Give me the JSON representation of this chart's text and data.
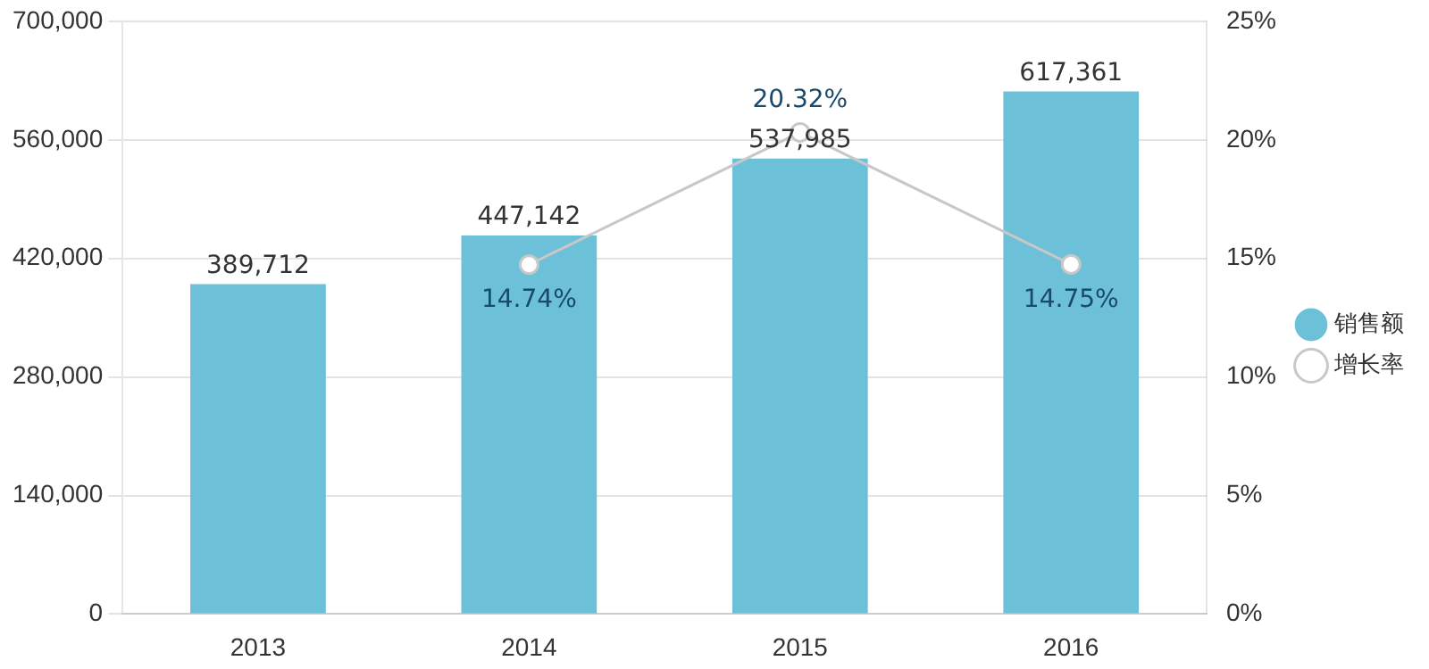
{
  "chart_data": {
    "type": "bar",
    "categories": [
      "2013",
      "2014",
      "2015",
      "2016"
    ],
    "series": [
      {
        "name": "销售额",
        "color": "#6cc0d8",
        "values": [
          389712,
          447142,
          537985,
          617361
        ],
        "value_labels": [
          "389,712",
          "447,142",
          "537,985",
          "617,361"
        ]
      },
      {
        "name": "增长率",
        "type": "line",
        "axis": "y2",
        "color": "#c8c8c8",
        "values": [
          null,
          14.74,
          20.32,
          14.75
        ],
        "value_labels": [
          null,
          "14.74%",
          "20.32%",
          "14.75%"
        ]
      }
    ],
    "ylim": [
      0,
      700000
    ],
    "yticks": [
      {
        "value": 0,
        "label": "0"
      },
      {
        "value": 140000,
        "label": "140,000"
      },
      {
        "value": 280000,
        "label": "280,000"
      },
      {
        "value": 420000,
        "label": "420,000"
      },
      {
        "value": 560000,
        "label": "560,000"
      },
      {
        "value": 700000,
        "label": "700,000"
      }
    ],
    "y2lim": [
      0,
      25
    ],
    "y2ticks": [
      {
        "value": 0,
        "label": "0%"
      },
      {
        "value": 5,
        "label": "5%"
      },
      {
        "value": 10,
        "label": "10%"
      },
      {
        "value": 15,
        "label": "15%"
      },
      {
        "value": 20,
        "label": "20%"
      },
      {
        "value": 25,
        "label": "25%"
      }
    ],
    "grid": "y",
    "legend": "right",
    "marker": "circle"
  }
}
